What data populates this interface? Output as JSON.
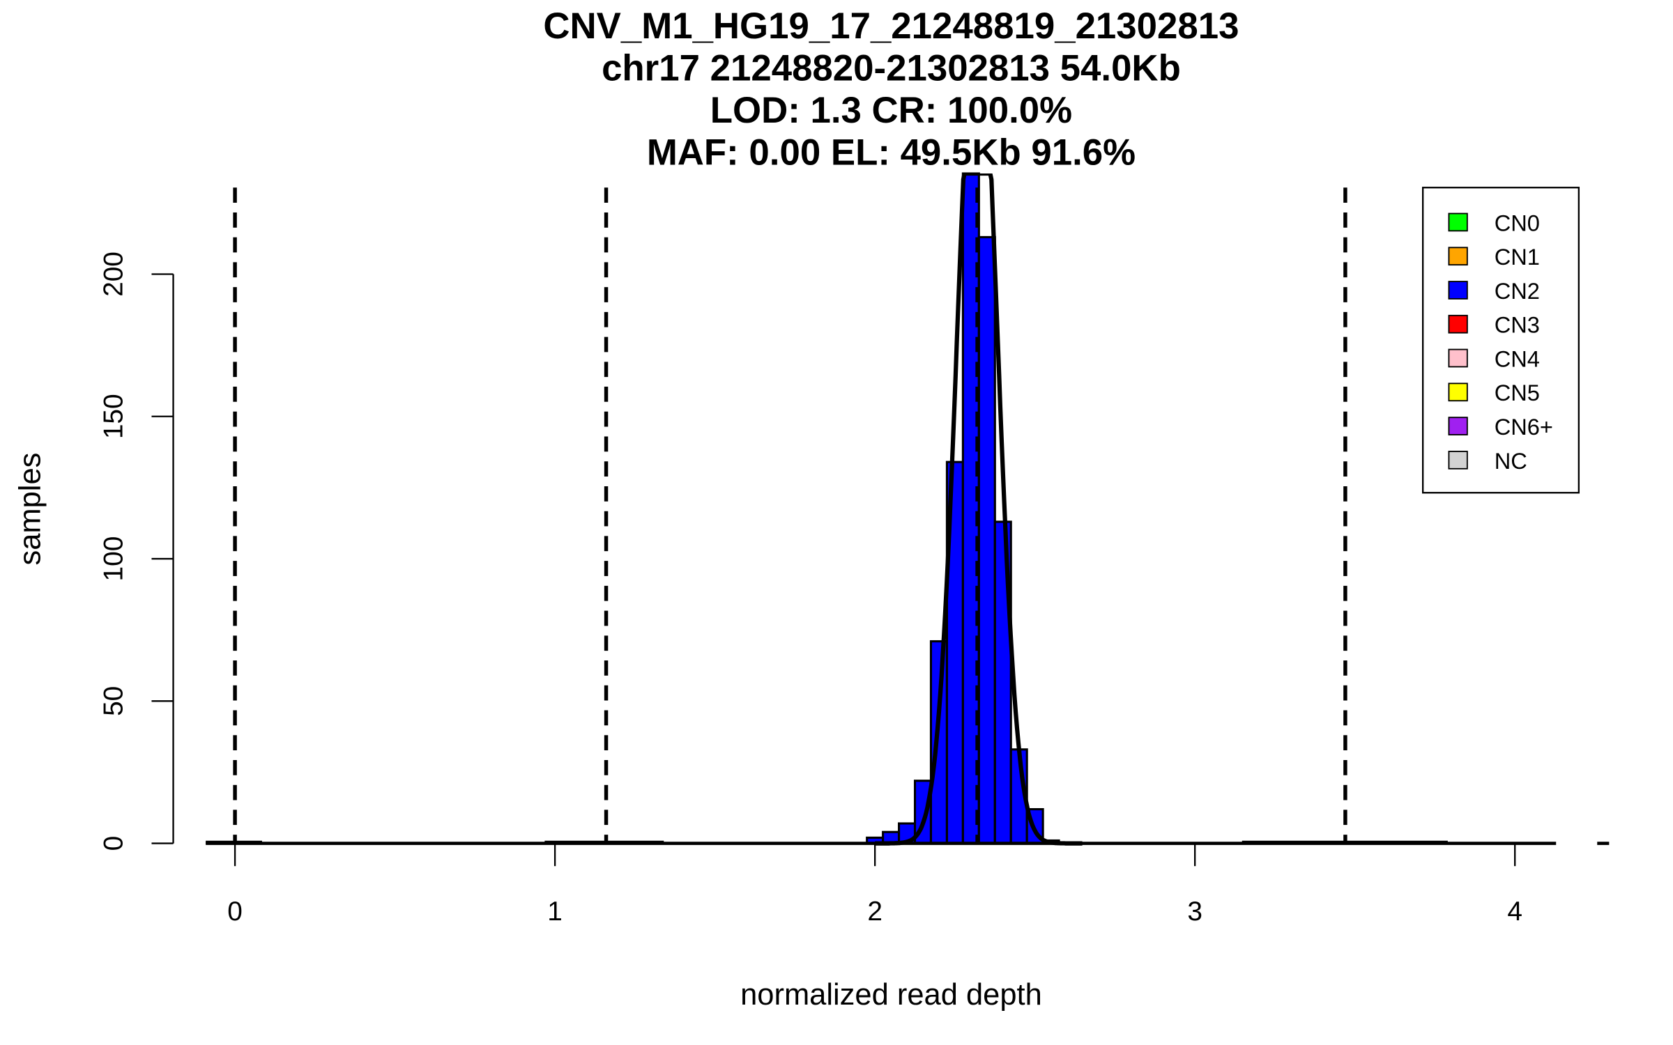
{
  "chart_data": {
    "type": "bar",
    "title_lines": [
      "CNV_M1_HG19_17_21248819_21302813",
      "chr17 21248820-21302813 54.0Kb",
      "LOD: 1.3 CR: 100.0%",
      "MAF: 0.00 EL: 49.5Kb 91.6%"
    ],
    "xlabel": "normalized read depth",
    "ylabel": "samples",
    "xlim": [
      -0.1,
      4.15
    ],
    "ylim": [
      0,
      235
    ],
    "xticks": [
      "0",
      "1",
      "2",
      "3",
      "4"
    ],
    "yticks": [
      "0",
      "50",
      "100",
      "150",
      "200"
    ],
    "grid": false,
    "bin_width": 0.05,
    "bins": [
      {
        "start": 1.975,
        "count": 2
      },
      {
        "start": 2.025,
        "count": 4
      },
      {
        "start": 2.075,
        "count": 7
      },
      {
        "start": 2.125,
        "count": 22
      },
      {
        "start": 2.175,
        "count": 71
      },
      {
        "start": 2.225,
        "count": 134
      },
      {
        "start": 2.275,
        "count": 260
      },
      {
        "start": 2.325,
        "count": 213
      },
      {
        "start": 2.375,
        "count": 113
      },
      {
        "start": 2.425,
        "count": 33
      },
      {
        "start": 2.475,
        "count": 12
      },
      {
        "start": 2.525,
        "count": 1
      }
    ],
    "bar_color": "#0000FF",
    "fit_curve": {
      "mean": 2.32,
      "sd": 0.062,
      "peak": 300
    },
    "cn_thresholds": [
      0.0,
      1.16,
      2.32,
      3.47
    ],
    "legend": {
      "placement": "top-right",
      "entries": [
        {
          "label": "CN0",
          "color": "#00FF00"
        },
        {
          "label": "CN1",
          "color": "#FFA500"
        },
        {
          "label": "CN2",
          "color": "#0000FF"
        },
        {
          "label": "CN3",
          "color": "#FF0000"
        },
        {
          "label": "CN4",
          "color": "#FFC0CB"
        },
        {
          "label": "CN5",
          "color": "#FFFF00"
        },
        {
          "label": "CN6+",
          "color": "#A020F0"
        },
        {
          "label": "NC",
          "color": "#D3D3D3"
        }
      ]
    }
  }
}
